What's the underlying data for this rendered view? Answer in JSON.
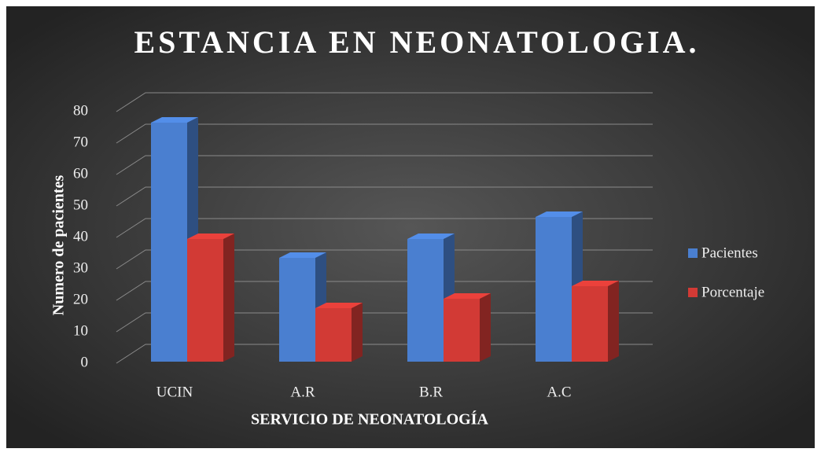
{
  "chart_data": {
    "type": "bar3d",
    "title": "ESTANCIA EN NEONATOLOGIA.",
    "x_label": "SERVICIO DE NEONATOLOGÍA",
    "y_label": "Numero de pacientes",
    "categories": [
      "UCIN",
      "A.R",
      "B.R",
      "A.C"
    ],
    "series": [
      {
        "name": "Pacientes",
        "color": "#4a7fd0",
        "values": [
          76,
          33,
          39,
          46
        ]
      },
      {
        "name": "Porcentaje",
        "color": "#d23a35",
        "values": [
          39,
          17,
          20,
          24
        ]
      }
    ],
    "ylim": [
      0,
      80
    ],
    "yticks": [
      0,
      10,
      20,
      30,
      40,
      50,
      60,
      70,
      80
    ],
    "grid": true,
    "legend": "right"
  }
}
